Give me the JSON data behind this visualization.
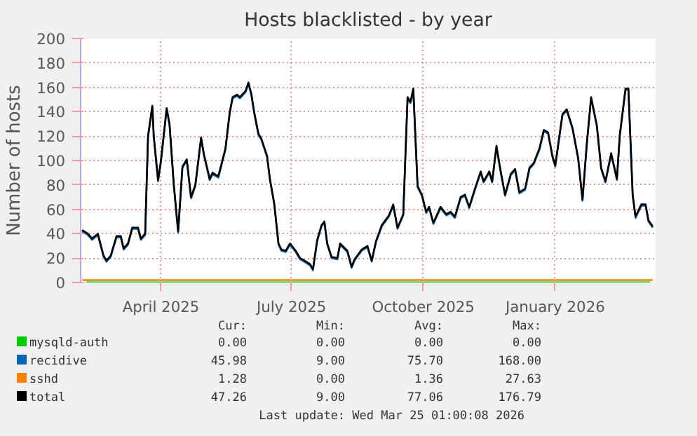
{
  "chart_data": {
    "type": "line",
    "title": "Hosts blacklisted - by year",
    "ylabel": "Number of hosts",
    "x": [
      "2025-02-05",
      "2025-02-09",
      "2025-02-12",
      "2025-02-16",
      "2025-02-20",
      "2025-02-22",
      "2025-02-25",
      "2025-03-01",
      "2025-03-04",
      "2025-03-06",
      "2025-03-09",
      "2025-03-12",
      "2025-03-16",
      "2025-03-18",
      "2025-03-21",
      "2025-03-23",
      "2025-03-26",
      "2025-03-27",
      "2025-03-30",
      "2025-04-01",
      "2025-04-05",
      "2025-04-07",
      "2025-04-10",
      "2025-04-13",
      "2025-04-16",
      "2025-04-19",
      "2025-04-22",
      "2025-04-25",
      "2025-04-29",
      "2025-05-01",
      "2025-05-05",
      "2025-05-07",
      "2025-05-11",
      "2025-05-16",
      "2025-05-19",
      "2025-05-21",
      "2025-05-24",
      "2025-05-26",
      "2025-05-30",
      "2025-06-01",
      "2025-06-03",
      "2025-06-05",
      "2025-06-08",
      "2025-06-10",
      "2025-06-14",
      "2025-06-16",
      "2025-06-19",
      "2025-06-22",
      "2025-06-24",
      "2025-06-27",
      "2025-06-30",
      "2025-07-04",
      "2025-07-07",
      "2025-07-10",
      "2025-07-14",
      "2025-07-16",
      "2025-07-19",
      "2025-07-22",
      "2025-07-24",
      "2025-07-26",
      "2025-07-29",
      "2025-08-02",
      "2025-08-04",
      "2025-08-09",
      "2025-08-12",
      "2025-08-14",
      "2025-08-19",
      "2025-08-23",
      "2025-08-26",
      "2025-08-29",
      "2025-09-02",
      "2025-09-07",
      "2025-09-10",
      "2025-09-13",
      "2025-09-17",
      "2025-09-20",
      "2025-09-22",
      "2025-09-24",
      "2025-09-27",
      "2025-09-30",
      "2025-10-03",
      "2025-10-05",
      "2025-10-08",
      "2025-10-13",
      "2025-10-17",
      "2025-10-20",
      "2025-10-23",
      "2025-10-27",
      "2025-10-30",
      "2025-11-02",
      "2025-11-06",
      "2025-11-10",
      "2025-11-12",
      "2025-11-16",
      "2025-11-18",
      "2025-11-21",
      "2025-11-24",
      "2025-11-27",
      "2025-12-01",
      "2025-12-04",
      "2025-12-07",
      "2025-12-11",
      "2025-12-14",
      "2025-12-17",
      "2025-12-21",
      "2025-12-24",
      "2025-12-27",
      "2025-12-30",
      "2026-01-01",
      "2026-01-06",
      "2026-01-09",
      "2026-01-13",
      "2026-01-17",
      "2026-01-20",
      "2026-01-23",
      "2026-01-26",
      "2026-01-30",
      "2026-02-02",
      "2026-02-05",
      "2026-02-09",
      "2026-02-13",
      "2026-02-15",
      "2026-02-19",
      "2026-02-21",
      "2026-02-24",
      "2026-02-26",
      "2026-03-02",
      "2026-03-05",
      "2026-03-07",
      "2026-03-10"
    ],
    "series": [
      {
        "name": "mysqld-auth",
        "color": "#00cc00",
        "x": [
          "2025-02-08",
          "2026-03-08"
        ],
        "values": [
          0,
          0
        ]
      },
      {
        "name": "recidive",
        "color": "#0066b3",
        "values": [
          42,
          39,
          35,
          39,
          21,
          17,
          21,
          37,
          37,
          27,
          31,
          44,
          44,
          35,
          39,
          119,
          144,
          119,
          83,
          99,
          142,
          129,
          79,
          41,
          94,
          100,
          69,
          79,
          118,
          104,
          84,
          89,
          86,
          109,
          139,
          151,
          153,
          151,
          156,
          163,
          154,
          139,
          121,
          117,
          103,
          84,
          64,
          31,
          26,
          25,
          31,
          25,
          19,
          17,
          14,
          10,
          34,
          46,
          49,
          31,
          20,
          19,
          31,
          25,
          12,
          18,
          26,
          29,
          17,
          33,
          46,
          54,
          63,
          44,
          55,
          151,
          147,
          158,
          78,
          71,
          57,
          61,
          48,
          61,
          55,
          57,
          53,
          69,
          71,
          61,
          76,
          90,
          82,
          90,
          82,
          111,
          90,
          71,
          88,
          92,
          73,
          76,
          93,
          97,
          109,
          124,
          122,
          103,
          95,
          137,
          141,
          126,
          101,
          67,
          113,
          151,
          128,
          93,
          82,
          105,
          84,
          120,
          158,
          158,
          71,
          53,
          63,
          63,
          50,
          45
        ]
      },
      {
        "name": "sshd",
        "color": "#ff8000",
        "x": [
          "2025-02-05",
          "2025-05-01",
          "2025-08-01",
          "2025-11-01",
          "2026-03-10"
        ],
        "values": [
          2,
          2,
          2,
          2,
          2
        ]
      },
      {
        "name": "total",
        "color": "#000000",
        "values": [
          43,
          40,
          36,
          40,
          22,
          18,
          22,
          38,
          38,
          28,
          32,
          45,
          45,
          36,
          40,
          120,
          145,
          120,
          84,
          100,
          143,
          130,
          80,
          42,
          95,
          101,
          70,
          80,
          119,
          105,
          85,
          90,
          87,
          110,
          140,
          152,
          154,
          152,
          157,
          164,
          155,
          140,
          122,
          118,
          104,
          85,
          65,
          32,
          27,
          26,
          32,
          26,
          20,
          18,
          15,
          11,
          35,
          47,
          50,
          32,
          21,
          20,
          32,
          26,
          13,
          19,
          27,
          30,
          18,
          34,
          47,
          55,
          64,
          45,
          56,
          152,
          148,
          159,
          79,
          72,
          58,
          62,
          49,
          62,
          56,
          58,
          54,
          70,
          72,
          62,
          77,
          91,
          83,
          91,
          83,
          112,
          91,
          72,
          89,
          93,
          74,
          77,
          94,
          98,
          110,
          125,
          123,
          104,
          96,
          138,
          142,
          127,
          102,
          68,
          114,
          152,
          129,
          94,
          83,
          106,
          85,
          121,
          159,
          159,
          72,
          54,
          64,
          64,
          51,
          46
        ]
      }
    ],
    "xlim": [
      "2025-02-04",
      "2026-03-12"
    ],
    "xticks": [
      {
        "value": "2025-04-01",
        "label": "April 2025"
      },
      {
        "value": "2025-07-01",
        "label": "July 2025"
      },
      {
        "value": "2025-10-01",
        "label": "October 2025"
      },
      {
        "value": "2026-01-01",
        "label": "January 2026"
      }
    ],
    "ylim": [
      0,
      200
    ],
    "yticks": [
      0,
      20,
      40,
      60,
      80,
      100,
      120,
      140,
      160,
      180,
      200
    ],
    "grid": true,
    "legend": "bottom",
    "marker": "none",
    "line_style": "solid",
    "annotations": [
      "Cur:",
      "Min:",
      "Avg:",
      "Max:",
      "0.00",
      "0.00",
      "0.00",
      "0.00",
      "45.98",
      "9.00",
      "75.70",
      "168.00",
      "1.28",
      "0.00",
      "1.36",
      "27.63",
      "47.26",
      "9.00",
      "77.06",
      "176.79",
      "Last update: Wed Mar 25 01:00:08 2026"
    ]
  }
}
